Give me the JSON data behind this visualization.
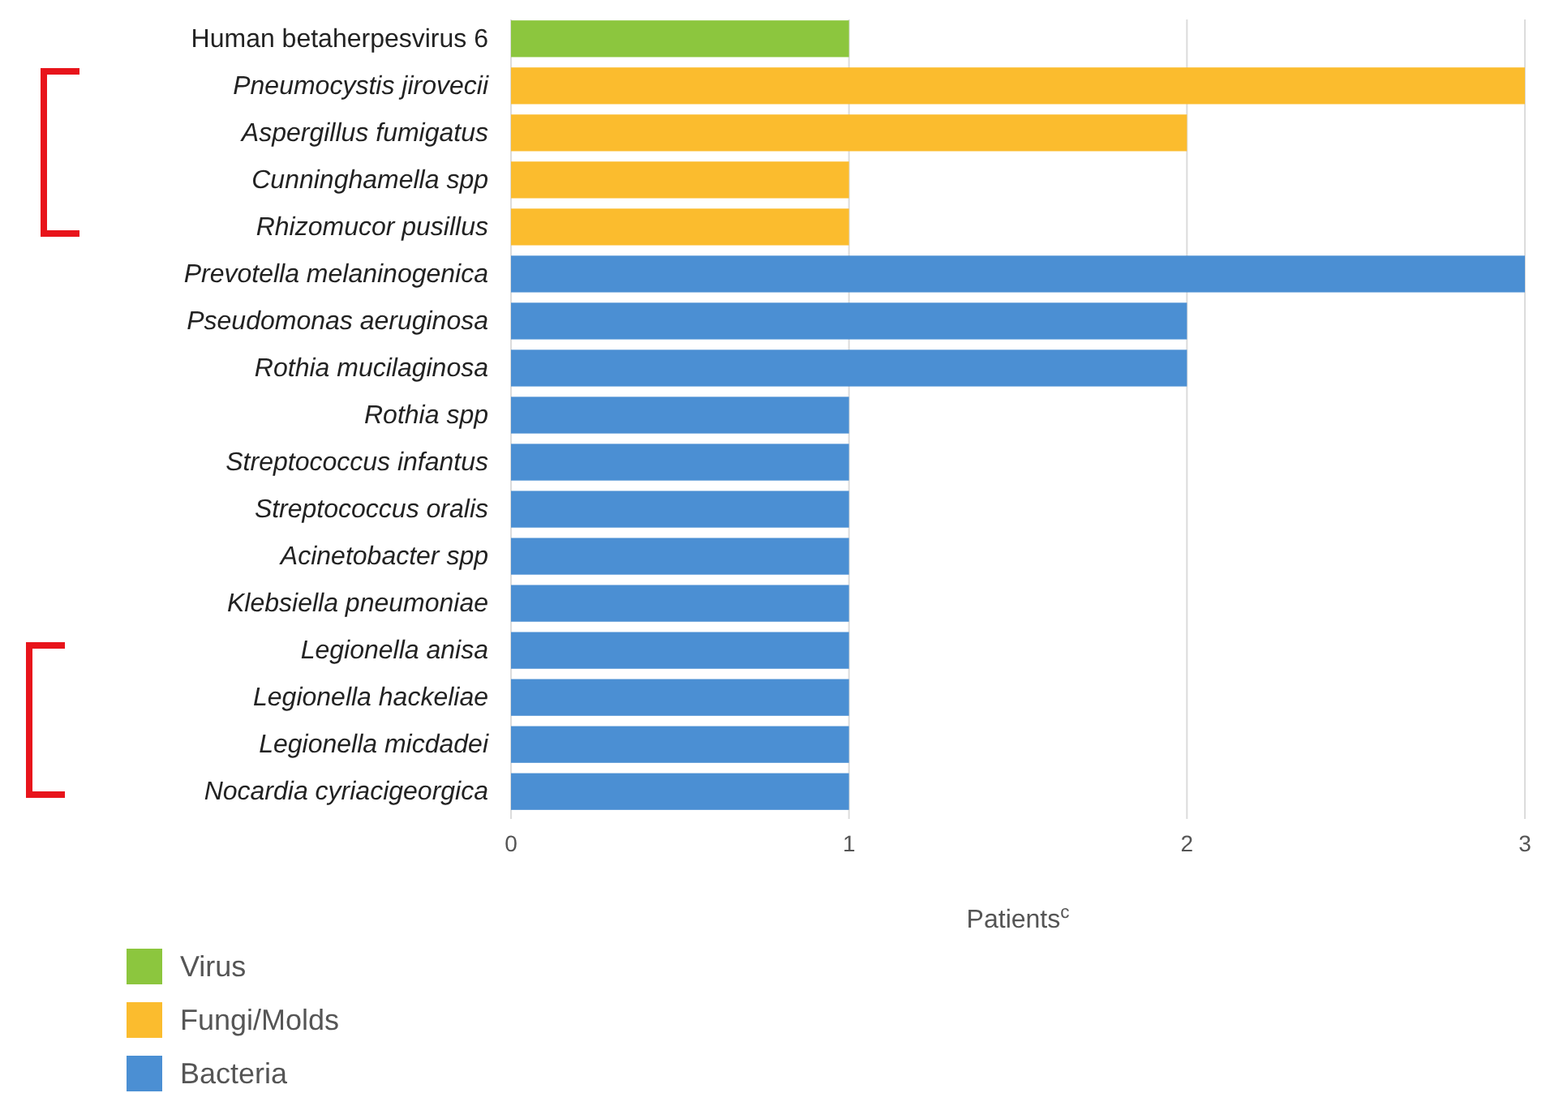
{
  "chart_data": {
    "type": "bar",
    "orientation": "horizontal",
    "xlabel": "Patients$^{c}$",
    "categories": [
      "Human betaherpesvirus 6",
      "Pneumocystis jirovecii",
      "Aspergillus fumigatus",
      "Cunninghamella spp",
      "Rhizomucor pusillus",
      "Prevotella melaninogenica",
      "Pseudomonas aeruginosa",
      "Rothia mucilaginosa",
      "Rothia spp",
      "Streptococcus infantus",
      "Streptococcus oralis",
      "Acinetobacter spp",
      "Klebsiella pneumoniae",
      "Legionella anisa",
      "Legionella hackeliae",
      "Legionella micdadei",
      "Nocardia cyriacigeorgica"
    ],
    "series": [
      {
        "name": "Virus",
        "color": "#8cc63e",
        "values": [
          1,
          null,
          null,
          null,
          null,
          null,
          null,
          null,
          null,
          null,
          null,
          null,
          null,
          null,
          null,
          null,
          null
        ]
      },
      {
        "name": "Fungi/Molds",
        "color": "#fbbc2e",
        "values": [
          null,
          3,
          2,
          1,
          1,
          null,
          null,
          null,
          null,
          null,
          null,
          null,
          null,
          null,
          null,
          null,
          null
        ]
      },
      {
        "name": "Bacteria",
        "color": "#4b8fd3",
        "values": [
          null,
          null,
          null,
          null,
          null,
          3,
          2,
          2,
          1,
          1,
          1,
          1,
          1,
          1,
          1,
          1,
          1
        ]
      }
    ],
    "xlim": [
      0,
      3
    ],
    "xticks": [
      0,
      1,
      2,
      3
    ],
    "grid": "x",
    "legend": "bottom left"
  }
}
